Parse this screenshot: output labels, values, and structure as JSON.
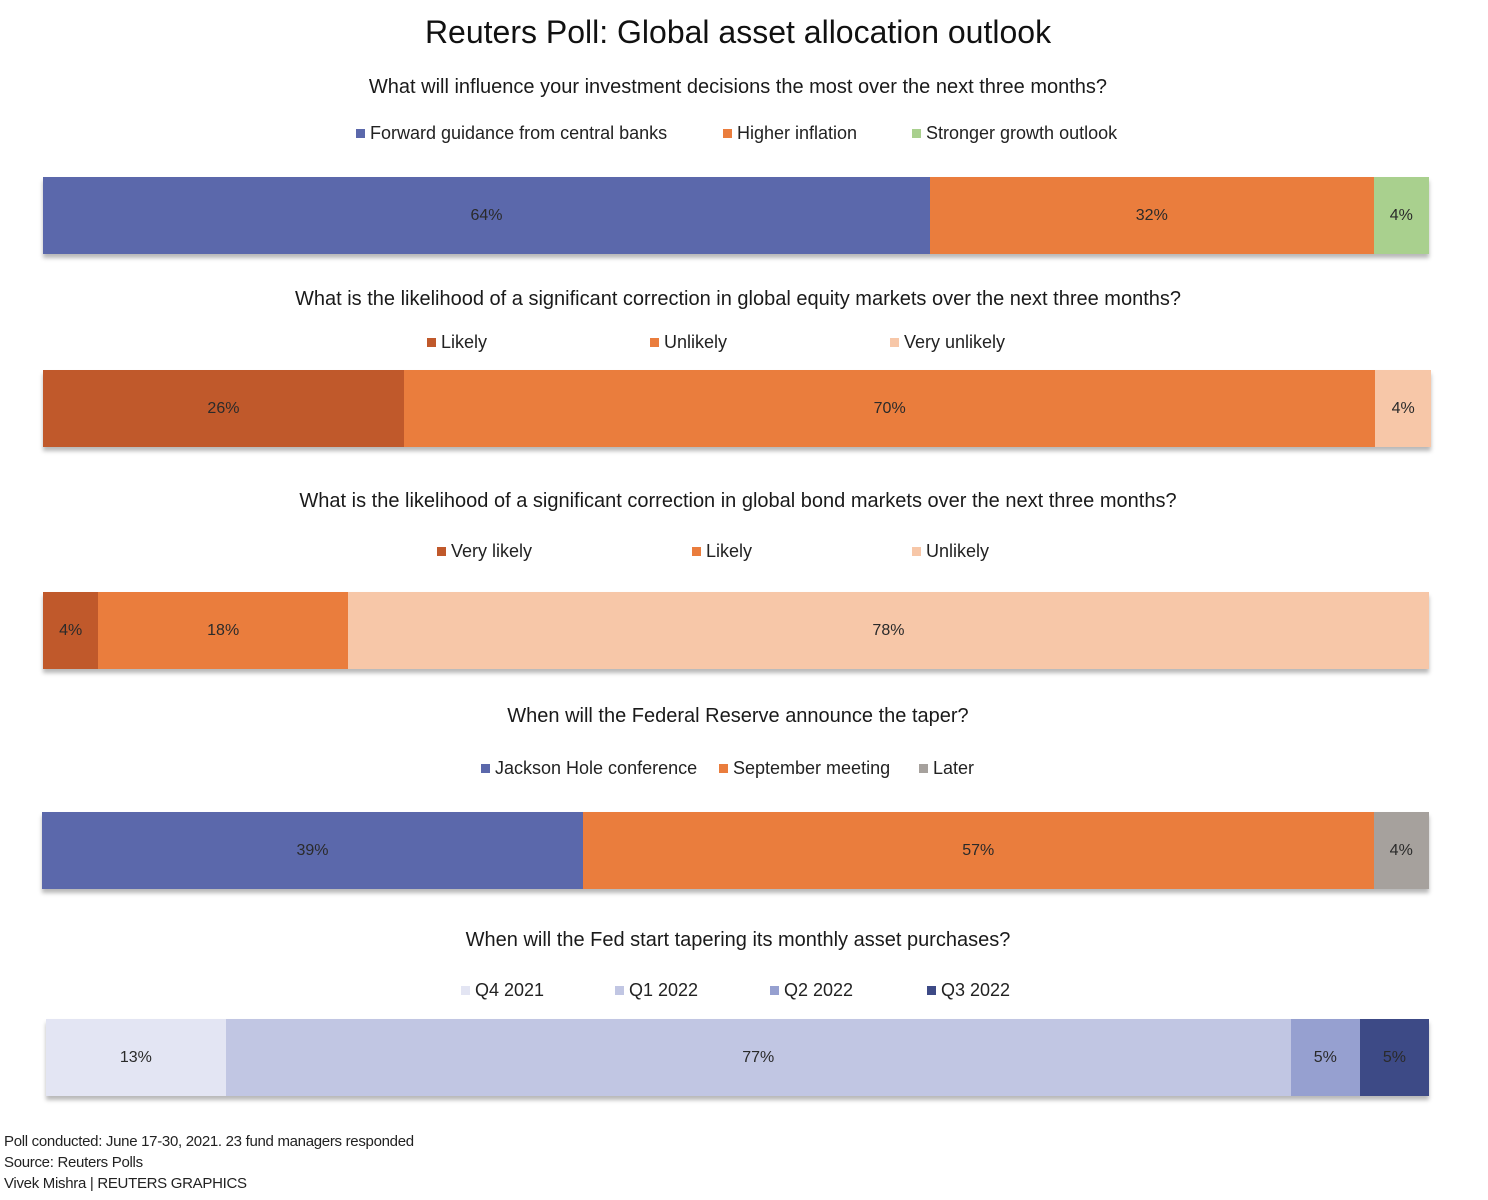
{
  "title": "Reuters Poll: Global asset allocation outlook",
  "chart_data": [
    {
      "type": "bar",
      "stacked": true,
      "orientation": "horizontal",
      "title": "What will influence your investment decisions the most over the next three months?",
      "series": [
        {
          "name": "Forward guidance from central banks",
          "value": 64,
          "label": "64%",
          "color": "#5b68ab"
        },
        {
          "name": "Higher inflation",
          "value": 32,
          "label": "32%",
          "color": "#ea7d3d"
        },
        {
          "name": "Stronger growth outlook",
          "value": 4,
          "label": "4%",
          "color": "#a9d08e"
        }
      ]
    },
    {
      "type": "bar",
      "stacked": true,
      "orientation": "horizontal",
      "title": "What is the likelihood of a significant correction in global equity markets over the next three months?",
      "series": [
        {
          "name": "Likely",
          "value": 26,
          "label": "26%",
          "color": "#c0592b"
        },
        {
          "name": "Unlikely",
          "value": 70,
          "label": "70%",
          "color": "#ea7d3d"
        },
        {
          "name": "Very unlikely",
          "value": 4,
          "label": "4%",
          "color": "#f7c7a8"
        }
      ]
    },
    {
      "type": "bar",
      "stacked": true,
      "orientation": "horizontal",
      "title": "What is the likelihood of a significant correction in global bond markets over the next three months?",
      "series": [
        {
          "name": "Very likely",
          "value": 4,
          "label": "4%",
          "color": "#c0592b"
        },
        {
          "name": "Likely",
          "value": 18,
          "label": "18%",
          "color": "#ea7d3d"
        },
        {
          "name": "Unlikely",
          "value": 78,
          "label": "78%",
          "color": "#f7c7a8"
        }
      ]
    },
    {
      "type": "bar",
      "stacked": true,
      "orientation": "horizontal",
      "title": "When will the Federal Reserve announce the taper?",
      "series": [
        {
          "name": "Jackson Hole conference",
          "value": 39,
          "label": "39%",
          "color": "#5b68ab"
        },
        {
          "name": "September meeting",
          "value": 57,
          "label": "57%",
          "color": "#ea7d3d"
        },
        {
          "name": "Later",
          "value": 4,
          "label": "4%",
          "color": "#a6a19d"
        }
      ]
    },
    {
      "type": "bar",
      "stacked": true,
      "orientation": "horizontal",
      "title": "When will the Fed start tapering its monthly asset purchases?",
      "series": [
        {
          "name": "Q4 2021",
          "value": 13,
          "label": "13%",
          "color": "#e3e5f3"
        },
        {
          "name": "Q1 2022",
          "value": 77,
          "label": "77%",
          "color": "#c1c6e3"
        },
        {
          "name": "Q2 2022",
          "value": 5,
          "label": "5%",
          "color": "#96a0d0"
        },
        {
          "name": "Q3 2022",
          "value": 5,
          "label": "5%",
          "color": "#3d4a86"
        }
      ]
    }
  ],
  "footer": {
    "line1": "Poll conducted: June 17-30, 2021. 23 fund managers responded",
    "line2": "Source: Reuters Polls",
    "line3": "Vivek Mishra | REUTERS GRAPHICS"
  }
}
